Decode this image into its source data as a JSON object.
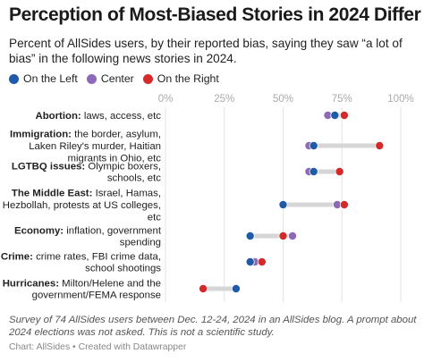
{
  "chart_data": {
    "type": "dot",
    "title": "Perception of Most-Biased Stories in 2024 Differ",
    "subtitle": "Percent of AllSides users, by their reported bias, saying they saw “a lot of bias” in the following news stories in 2024.",
    "xlim": [
      0,
      100
    ],
    "x_ticks": [
      "0%",
      "25%",
      "50%",
      "75%",
      "100%"
    ],
    "x_tick_values": [
      0,
      25,
      50,
      75,
      100
    ],
    "grid": true,
    "legend_position": "top-left",
    "series": [
      {
        "name": "On the Left",
        "color": "#1f5ba8"
      },
      {
        "name": "Center",
        "color": "#8e69b8"
      },
      {
        "name": "On the Right",
        "color": "#d42a2a"
      }
    ],
    "categories": [
      {
        "bold": "Abortion:",
        "lines": [
          " laws, access, etc"
        ],
        "values": [
          72,
          69,
          76
        ]
      },
      {
        "bold": "Immigration:",
        "lines": [
          " the border, asylum,",
          "Laken Riley's murder, Haitian",
          "migrants in Ohio, etc"
        ],
        "values": [
          63,
          61,
          91
        ]
      },
      {
        "bold": "LGTBQ issues:",
        "lines": [
          " Olympic boxers,",
          "schools, etc"
        ],
        "values": [
          63,
          61,
          74
        ]
      },
      {
        "bold": "The Middle East:",
        "lines": [
          " Israel, Hamas,",
          "Hezbollah, protests at US colleges,",
          "etc"
        ],
        "values": [
          50,
          73,
          76
        ]
      },
      {
        "bold": "Economy:",
        "lines": [
          " inflation, government",
          "spending"
        ],
        "values": [
          36,
          54,
          50
        ]
      },
      {
        "bold": "Crime:",
        "lines": [
          " crime rates, FBI crime data,",
          "school shootings"
        ],
        "values": [
          36,
          38,
          41
        ]
      },
      {
        "bold": "Hurricanes:",
        "lines": [
          " Milton/Helene and the",
          "government/FEMA response"
        ],
        "values": [
          30,
          null,
          16
        ]
      }
    ]
  },
  "footer": {
    "note": "Survey of 74 AllSides users between Dec. 12-24, 2024 in an AllSides blog. A prompt about 2024 elections was not asked. This is not a scientific study.",
    "source": "Chart: AllSides",
    "separator": " • ",
    "credit": "Created with Datawrapper"
  }
}
